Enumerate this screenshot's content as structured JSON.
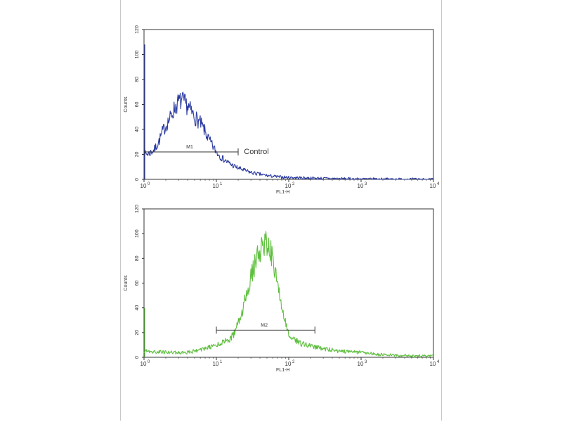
{
  "chart_data": [
    {
      "type": "line",
      "xscale": "log",
      "xlim": [
        1,
        10000
      ],
      "ylim": [
        0,
        120
      ],
      "xlabel": "FL1-H",
      "ylabel": "Counts",
      "yticks": [
        "0",
        "20",
        "40",
        "60",
        "80",
        "100",
        "120"
      ],
      "xticks": [
        {
          "base": "10",
          "exp": "0"
        },
        {
          "base": "10",
          "exp": "1"
        },
        {
          "base": "10",
          "exp": "2"
        },
        {
          "base": "10",
          "exp": "3"
        },
        {
          "base": "10",
          "exp": "4"
        }
      ],
      "series": [
        {
          "color": "#2b3aa0",
          "x": [
            1,
            1.2,
            1.4,
            1.6,
            1.8,
            2,
            2.3,
            2.6,
            3,
            3.4,
            3.8,
            4.3,
            5,
            6,
            7,
            8,
            9,
            10,
            12,
            14,
            17,
            20,
            25,
            30,
            40,
            50,
            70,
            100,
            200,
            500,
            1000,
            10000
          ],
          "y": [
            20,
            21,
            24,
            30,
            38,
            43,
            49,
            56,
            62,
            63,
            60,
            56,
            50,
            45,
            38,
            31,
            26,
            22,
            17,
            14,
            11,
            9,
            7,
            5.5,
            4,
            3,
            2,
            1.5,
            1,
            0.5,
            0.3,
            0
          ]
        }
      ],
      "marker": {
        "label": "M1",
        "x1": 1,
        "x2": 20,
        "y": 22
      },
      "annotation": {
        "text": "Control",
        "x": 22,
        "y": 22
      }
    },
    {
      "type": "line",
      "xscale": "log",
      "xlim": [
        1,
        10000
      ],
      "ylim": [
        0,
        120
      ],
      "xlabel": "FL1-H",
      "ylabel": "Counts",
      "yticks": [
        "0",
        "20",
        "40",
        "60",
        "80",
        "100",
        "120"
      ],
      "xticks": [
        {
          "base": "10",
          "exp": "0"
        },
        {
          "base": "10",
          "exp": "1"
        },
        {
          "base": "10",
          "exp": "2"
        },
        {
          "base": "10",
          "exp": "3"
        },
        {
          "base": "10",
          "exp": "4"
        }
      ],
      "series": [
        {
          "color": "#5fbf3f",
          "x": [
            1,
            2,
            4,
            6,
            8,
            10,
            12,
            15,
            18,
            22,
            26,
            30,
            35,
            40,
            45,
            50,
            55,
            60,
            70,
            80,
            90,
            100,
            120,
            150,
            200,
            300,
            500,
            1000,
            2000,
            5000,
            10000
          ],
          "y": [
            5,
            4,
            4,
            6,
            8,
            10,
            12,
            14,
            20,
            33,
            50,
            64,
            78,
            87,
            91,
            93,
            88,
            79,
            58,
            40,
            28,
            20,
            14,
            11,
            9,
            7,
            5,
            4,
            2,
            1,
            1
          ]
        }
      ],
      "marker": {
        "label": "M2",
        "x1": 10,
        "x2": 230,
        "y": 22
      }
    }
  ]
}
